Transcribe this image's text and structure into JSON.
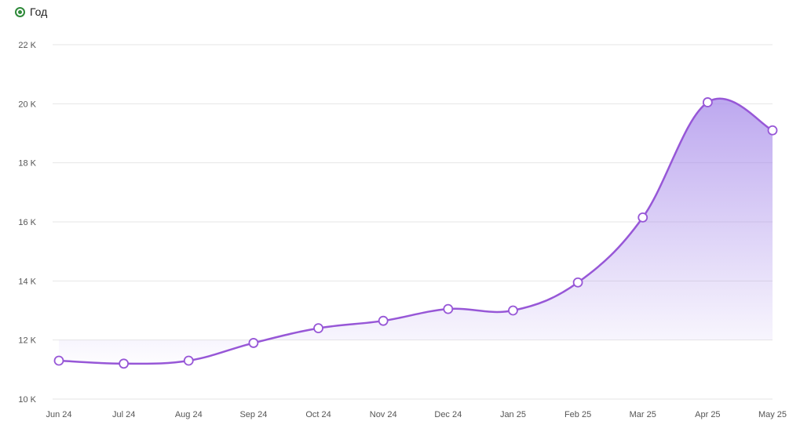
{
  "legend": {
    "label": "Год",
    "marker_color": "#2f8a3a"
  },
  "chart_data": {
    "type": "area",
    "title": "",
    "xlabel": "",
    "ylabel": "",
    "categories": [
      "Jun 24",
      "Jul 24",
      "Aug 24",
      "Sep 24",
      "Oct 24",
      "Nov 24",
      "Dec 24",
      "Jan 25",
      "Feb 25",
      "Mar 25",
      "Apr 25",
      "May 25"
    ],
    "series": [
      {
        "name": "Год",
        "values": [
          11300,
          11200,
          11300,
          11900,
          12400,
          12650,
          13050,
          13000,
          13950,
          16150,
          20050,
          19100
        ]
      }
    ],
    "ylim": [
      10000,
      22000
    ],
    "yticks": [
      10000,
      12000,
      14000,
      16000,
      18000,
      20000,
      22000
    ],
    "ytick_labels": [
      "10 K",
      "12 K",
      "14 K",
      "16 K",
      "18 K",
      "20 K",
      "22 K"
    ],
    "grid": true,
    "legend_position": "top-left",
    "line_color": "#9757d7",
    "fill_color": "#b59cf0",
    "grid_color": "#e6e6e6"
  }
}
